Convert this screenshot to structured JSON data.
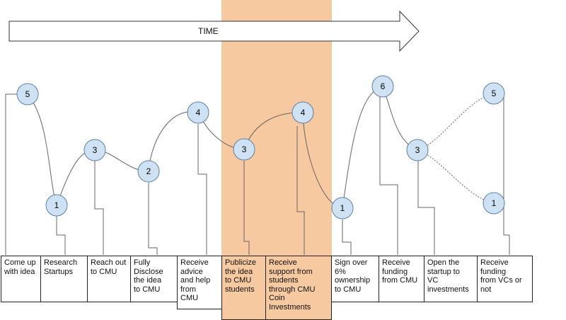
{
  "time_label": "TIME",
  "colors": {
    "highlight": "#f7c9a0",
    "node_fill": "#cfe2f3",
    "node_stroke": "#5b7fa6",
    "line": "#666666"
  },
  "steps": [
    {
      "text": "Come up with idea",
      "lines": [
        "Come up",
        "with idea"
      ],
      "value": "5"
    },
    {
      "text": "Research Startups",
      "lines": [
        "Research",
        "Startups"
      ],
      "value": "1"
    },
    {
      "text": "Reach out to CMU",
      "lines": [
        "Reach out",
        "to CMU"
      ],
      "value": "3"
    },
    {
      "text": "Fully Disclose the idea to CMU",
      "lines": [
        "Fully",
        "Disclose",
        "the idea",
        "to CMU"
      ],
      "value": "2"
    },
    {
      "text": "Receive advice and help from CMU",
      "lines": [
        "Receive",
        "advice",
        "and help",
        "from",
        "CMU"
      ],
      "value": "4"
    },
    {
      "text": "Publicize the idea to CMU students",
      "lines": [
        "Publicize",
        "the idea",
        "to CMU",
        "students"
      ],
      "value": "3",
      "highlighted": true
    },
    {
      "text": "Receive support from students through CMU Coin Investments",
      "lines": [
        "Receive",
        "support from",
        "students",
        "through CMU",
        "Coin",
        "Investments"
      ],
      "value": "4",
      "highlighted": true
    },
    {
      "text": "Sign over 6% ownership to CMU",
      "lines": [
        "Sign over",
        "6%",
        "ownership",
        "to CMU"
      ],
      "value": "1"
    },
    {
      "text": "Receive funding from CMU",
      "lines": [
        "Receive",
        "funding",
        "from CMU"
      ],
      "value": "6"
    },
    {
      "text": "Open the startup to VC investments",
      "lines": [
        "Open the",
        "startup to",
        "VC",
        "investments"
      ],
      "value": "3"
    },
    {
      "text": "Receive funding from VCs or not",
      "lines": [
        "Receive",
        "funding",
        "from VCs or",
        "not"
      ],
      "values": [
        "5",
        "1"
      ]
    }
  ]
}
